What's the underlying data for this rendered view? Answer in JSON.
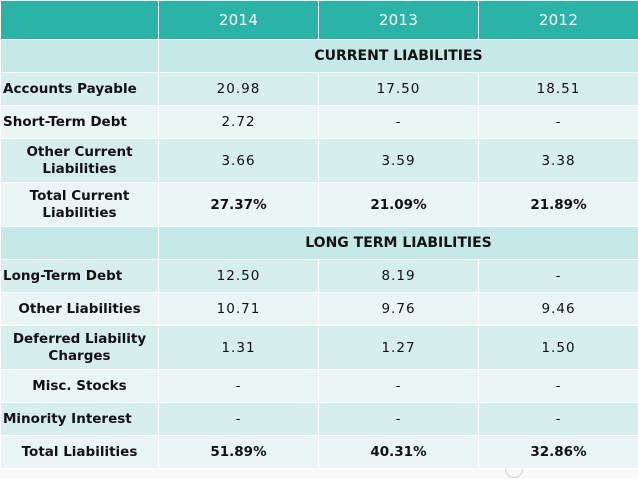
{
  "years": [
    "2014",
    "2013",
    "2012"
  ],
  "sections": {
    "current": "CURRENT LIABILITIES",
    "longterm": "LONG TERM LIABILITIES"
  },
  "rows": [
    {
      "label": "Accounts Payable",
      "values": [
        "20.98",
        "17.50",
        "18.51"
      ]
    },
    {
      "label": "Short-Term Debt",
      "values": [
        "2.72",
        "-",
        "-"
      ]
    },
    {
      "label": "Other Current Liabilities",
      "values": [
        "3.66",
        "3.59",
        "3.38"
      ]
    },
    {
      "label": "Total Current Liabilities",
      "values": [
        "27.37%",
        "21.09%",
        "21.89%"
      ]
    },
    {
      "label": "Long-Term Debt",
      "values": [
        "12.50",
        "8.19",
        "-"
      ]
    },
    {
      "label": "Other Liabilities",
      "values": [
        "10.71",
        "9.76",
        "9.46"
      ]
    },
    {
      "label": "Deferred Liability Charges",
      "values": [
        "1.31",
        "1.27",
        "1.50"
      ]
    },
    {
      "label": "Misc. Stocks",
      "values": [
        "-",
        "-",
        "-"
      ]
    },
    {
      "label": "Minority Interest",
      "values": [
        "-",
        "-",
        "-"
      ]
    },
    {
      "label": "Total Liabilities",
      "values": [
        "51.89%",
        "40.31%",
        "32.86%"
      ]
    }
  ],
  "colors": {
    "header": "#2bb3a7",
    "section": "#c4e9e6",
    "row_odd": "#d6eeec",
    "row_even": "#e9f6f5"
  }
}
